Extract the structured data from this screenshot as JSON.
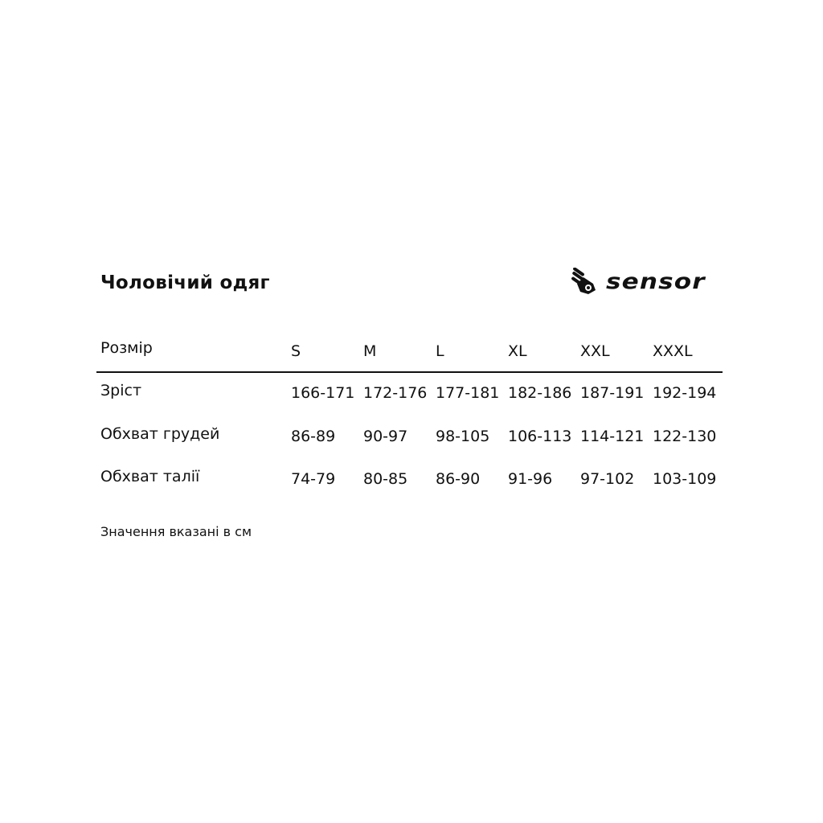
{
  "title": "Чоловічий одяг",
  "brand": {
    "logo_text": "sensor"
  },
  "table": {
    "header": {
      "label": "Розмір",
      "sizes": [
        "S",
        "M",
        "L",
        "XL",
        "XXL",
        "XXXL"
      ]
    },
    "rows": [
      {
        "label": "Зріст",
        "values": [
          "166-171",
          "172-176",
          "177-181",
          "182-186",
          "187-191",
          "192-194"
        ]
      },
      {
        "label": "Обхват грудей",
        "values": [
          "86-89",
          "90-97",
          "98-105",
          "106-113",
          "114-121",
          "122-130"
        ]
      },
      {
        "label": "Обхват талії",
        "values": [
          "74-79",
          "80-85",
          "86-90",
          "91-96",
          "97-102",
          "103-109"
        ]
      }
    ]
  },
  "note": "Значення вказані в см"
}
